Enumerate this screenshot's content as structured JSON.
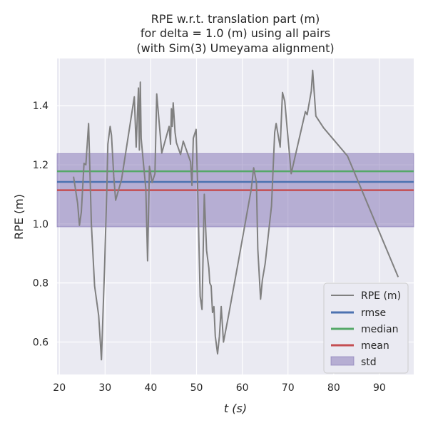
{
  "chart_data": {
    "type": "line",
    "title_lines": [
      "RPE w.r.t. translation part (m)",
      "for delta = 1.0 (m) using all pairs",
      "(with Sim(3) Umeyama alignment)"
    ],
    "xlabel": "t (s)",
    "ylabel": "RPE (m)",
    "xlim": [
      19.5,
      97.5
    ],
    "ylim": [
      0.49,
      1.56
    ],
    "x_ticks": [
      20,
      30,
      40,
      50,
      60,
      70,
      80,
      90
    ],
    "y_ticks": [
      0.6,
      0.8,
      1.0,
      1.2,
      1.4
    ],
    "x_tick_labels": [
      "20",
      "30",
      "40",
      "50",
      "60",
      "70",
      "80",
      "90"
    ],
    "y_tick_labels": [
      "0.6",
      "0.8",
      "1.0",
      "1.2",
      "1.4"
    ],
    "grid": true,
    "legend_position": "lower-right",
    "legend": {
      "rpe": "RPE (m)",
      "rmse": "rmse",
      "median": "median",
      "mean": "mean",
      "std": "std"
    },
    "colors": {
      "rpe": "#808080",
      "rmse": "#4c72b0",
      "median": "#55a868",
      "mean": "#c44e52",
      "std": "#8172b3",
      "background": "#eaeaf2",
      "grid": "#ffffff"
    },
    "stats": {
      "rmse": 1.142,
      "median": 1.178,
      "mean": 1.114,
      "std_band": [
        0.99,
        1.238
      ]
    },
    "series": [
      {
        "name": "RPE (m)",
        "points": [
          [
            23.1,
            1.16
          ],
          [
            24.0,
            1.07
          ],
          [
            24.4,
            0.995
          ],
          [
            24.8,
            1.04
          ],
          [
            25.4,
            1.205
          ],
          [
            25.8,
            1.2
          ],
          [
            26.4,
            1.34
          ],
          [
            27.0,
            1.0
          ],
          [
            27.7,
            0.79
          ],
          [
            28.6,
            0.69
          ],
          [
            29.2,
            0.54
          ],
          [
            29.9,
            0.86
          ],
          [
            30.4,
            1.13
          ],
          [
            30.6,
            1.27
          ],
          [
            31.1,
            1.33
          ],
          [
            31.4,
            1.3
          ],
          [
            31.9,
            1.16
          ],
          [
            32.3,
            1.08
          ],
          [
            33.6,
            1.15
          ],
          [
            36.4,
            1.43
          ],
          [
            36.8,
            1.26
          ],
          [
            37.3,
            1.46
          ],
          [
            37.5,
            1.25
          ],
          [
            37.7,
            1.48
          ],
          [
            37.9,
            1.29
          ],
          [
            38.3,
            1.22
          ],
          [
            38.9,
            1.12
          ],
          [
            39.3,
            0.875
          ],
          [
            39.7,
            1.195
          ],
          [
            40.3,
            1.14
          ],
          [
            40.9,
            1.17
          ],
          [
            41.3,
            1.44
          ],
          [
            41.9,
            1.33
          ],
          [
            42.4,
            1.24
          ],
          [
            44.0,
            1.33
          ],
          [
            44.3,
            1.27
          ],
          [
            44.5,
            1.39
          ],
          [
            44.7,
            1.33
          ],
          [
            44.9,
            1.41
          ],
          [
            45.3,
            1.31
          ],
          [
            45.6,
            1.275
          ],
          [
            46.5,
            1.235
          ],
          [
            47.1,
            1.28
          ],
          [
            48.7,
            1.21
          ],
          [
            49.0,
            1.13
          ],
          [
            49.3,
            1.29
          ],
          [
            49.9,
            1.32
          ],
          [
            50.3,
            1.09
          ],
          [
            50.8,
            0.755
          ],
          [
            51.2,
            0.71
          ],
          [
            51.7,
            1.1
          ],
          [
            52.2,
            0.91
          ],
          [
            52.7,
            0.85
          ],
          [
            52.9,
            0.8
          ],
          [
            53.2,
            0.79
          ],
          [
            53.5,
            0.7
          ],
          [
            53.8,
            0.72
          ],
          [
            54.1,
            0.62
          ],
          [
            54.6,
            0.56
          ],
          [
            55.0,
            0.62
          ],
          [
            55.4,
            0.72
          ],
          [
            55.9,
            0.6
          ],
          [
            57.0,
            0.69
          ],
          [
            59.0,
            0.86
          ],
          [
            62.0,
            1.12
          ],
          [
            62.5,
            1.19
          ],
          [
            63.1,
            1.14
          ],
          [
            63.4,
            0.915
          ],
          [
            64.0,
            0.745
          ],
          [
            64.4,
            0.81
          ],
          [
            65.0,
            0.865
          ],
          [
            66.4,
            1.06
          ],
          [
            67.1,
            1.31
          ],
          [
            67.4,
            1.34
          ],
          [
            68.3,
            1.26
          ],
          [
            68.8,
            1.445
          ],
          [
            69.3,
            1.415
          ],
          [
            70.7,
            1.17
          ],
          [
            73.8,
            1.38
          ],
          [
            74.2,
            1.37
          ],
          [
            75.1,
            1.45
          ],
          [
            75.4,
            1.52
          ],
          [
            76.1,
            1.365
          ],
          [
            77.8,
            1.325
          ],
          [
            83.0,
            1.23
          ],
          [
            94.1,
            0.82
          ]
        ]
      }
    ]
  }
}
